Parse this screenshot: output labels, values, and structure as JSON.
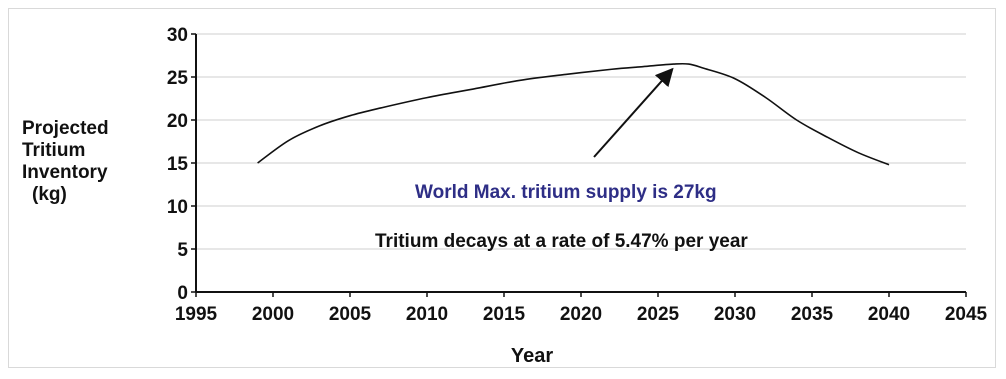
{
  "chart_data": {
    "type": "line",
    "title": "",
    "xlabel": "Year",
    "ylabel_lines": [
      "Projected",
      "Tritium",
      "Inventory",
      "(kg)"
    ],
    "xlim": [
      1995,
      2045
    ],
    "ylim": [
      0,
      30
    ],
    "x_ticks": [
      1995,
      2000,
      2005,
      2010,
      2015,
      2020,
      2025,
      2030,
      2035,
      2040,
      2045
    ],
    "y_ticks": [
      0,
      5,
      10,
      15,
      20,
      25,
      30
    ],
    "grid": "horizontal",
    "series": [
      {
        "x": [
          1999,
          2001,
          2003,
          2005,
          2007,
          2010,
          2013,
          2016,
          2019,
          2022,
          2024,
          2026,
          2027,
          2028,
          2030,
          2032,
          2034,
          2036,
          2038,
          2040
        ],
        "y": [
          15.0,
          17.6,
          19.3,
          20.5,
          21.4,
          22.6,
          23.6,
          24.6,
          25.3,
          25.9,
          26.2,
          26.5,
          26.5,
          26.0,
          24.8,
          22.6,
          20.0,
          18.0,
          16.2,
          14.8
        ]
      }
    ],
    "annotations": [
      {
        "text": "World Max. tritium supply is 27kg",
        "color": "#2e2e86",
        "arrow_to": [
          2026,
          26.5
        ]
      },
      {
        "text": "Tritium decays at a rate of 5.47% per year",
        "color": "#111111"
      }
    ],
    "colors": {
      "line": "#111111",
      "grid": "#cfcfcf",
      "axis": "#111111"
    }
  }
}
